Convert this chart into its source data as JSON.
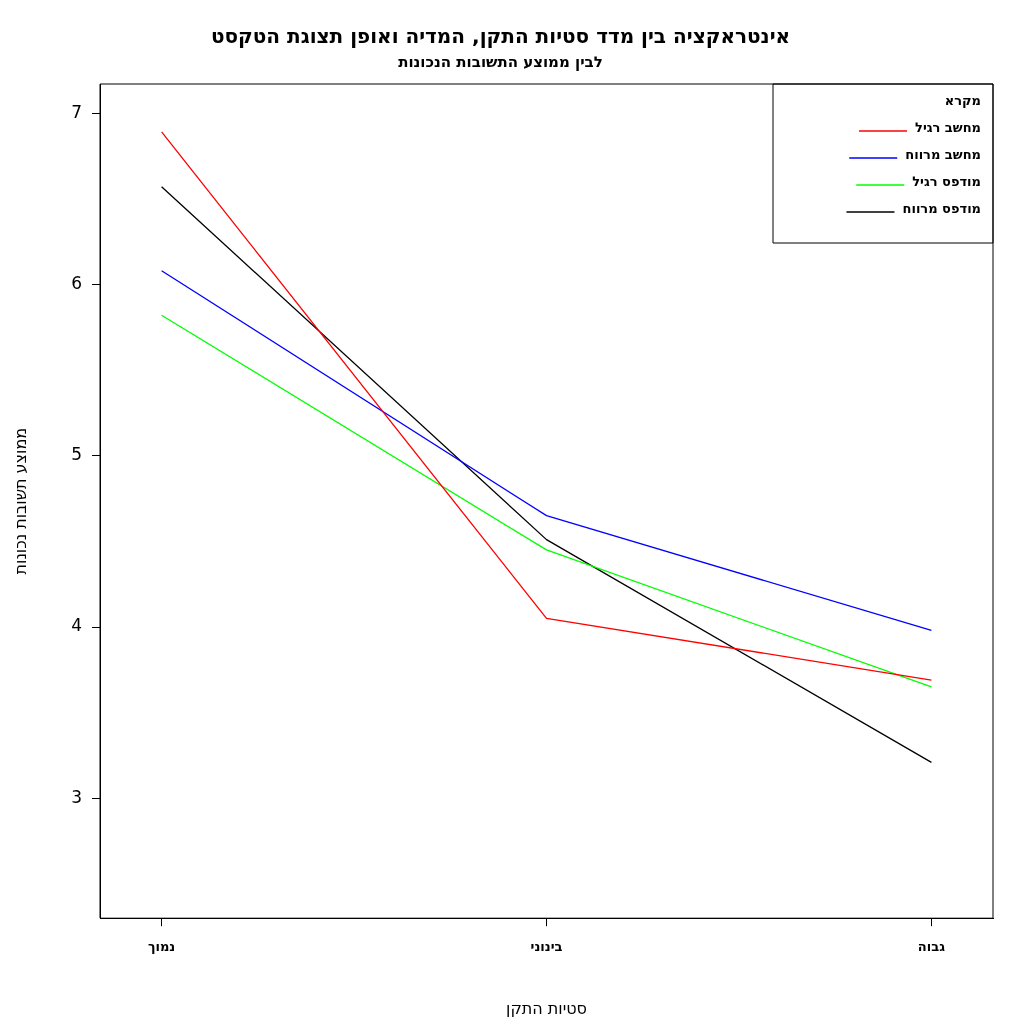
{
  "chart_data": {
    "type": "line",
    "title": "אינטראקציה בין מדד סטיות התקן, המדיה ואופן תצוגת הטקסט",
    "subtitle": "לבין ממוצע התשובות הנכונות",
    "xlabel": "סטיות התקן",
    "ylabel": "ממוצע תשובות נכונות",
    "legend_title": "מקרא",
    "legend": "top right",
    "grid": false,
    "line_style": "solid",
    "marker": "none",
    "categories": [
      "נמוך",
      "בינוני",
      "גבוה"
    ],
    "ylim": [
      2.3,
      7.17
    ],
    "yticks": [
      3,
      4,
      5,
      6,
      7
    ],
    "series": [
      {
        "name": "מחשב רגיל",
        "color": "#ff0000",
        "values": [
          6.89,
          4.05,
          3.69
        ]
      },
      {
        "name": "מחשב מרווח",
        "color": "#0000ff",
        "values": [
          6.08,
          4.65,
          3.98
        ]
      },
      {
        "name": "מודפס רגיל",
        "color": "#00ff00",
        "values": [
          5.82,
          4.45,
          3.65
        ]
      },
      {
        "name": "מודפס מרווח",
        "color": "#000000",
        "values": [
          6.57,
          4.51,
          3.21
        ]
      }
    ]
  }
}
